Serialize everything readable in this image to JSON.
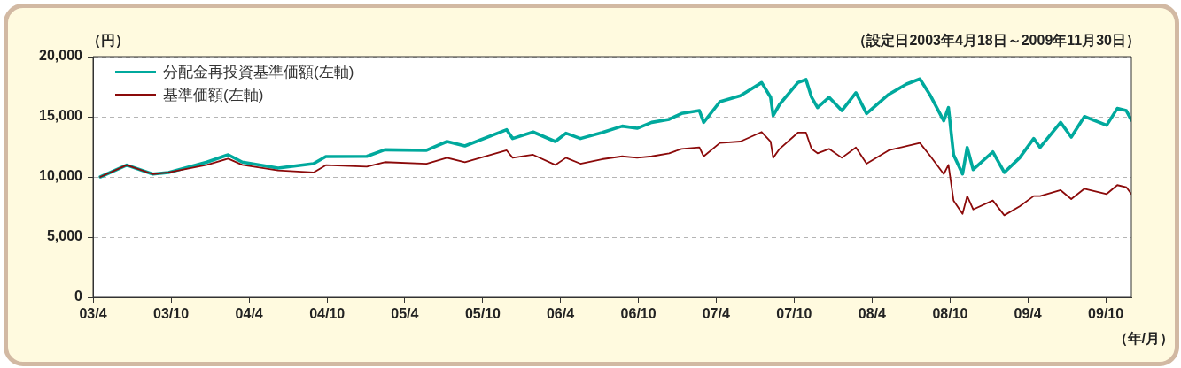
{
  "chart_data": {
    "type": "line",
    "subtitle": "（設定日2003年4月18日～2009年11月30日）",
    "ylabel": "（円）",
    "xlabel": "（年/月）",
    "x": [
      "2003-04-18",
      "2003-06-19",
      "2003-08-19",
      "2003-09-25",
      "2003-12-24",
      "2004-02-12",
      "2004-03-16",
      "2004-06-08",
      "2004-08-30",
      "2004-09-28",
      "2005-01-02",
      "2005-02-13",
      "2005-05-22",
      "2005-07-09",
      "2005-08-20",
      "2005-11-26",
      "2005-12-10",
      "2006-01-27",
      "2006-03-20",
      "2006-04-14",
      "2006-05-18",
      "2006-07-07",
      "2006-08-24",
      "2006-09-28",
      "2006-11-01",
      "2006-12-12",
      "2007-01-10",
      "2007-02-21",
      "2007-03-03",
      "2007-04-10",
      "2007-05-28",
      "2007-07-17",
      "2007-08-07",
      "2007-08-13",
      "2007-08-28",
      "2007-10-10",
      "2007-10-29",
      "2007-11-11",
      "2007-11-25",
      "2007-12-22",
      "2008-01-21",
      "2008-02-23",
      "2008-03-19",
      "2008-05-10",
      "2008-06-21",
      "2008-07-22",
      "2008-08-16",
      "2008-09-16",
      "2008-09-27",
      "2008-10-09",
      "2008-10-30",
      "2008-11-10",
      "2008-11-24",
      "2009-01-09",
      "2009-02-05",
      "2009-03-13",
      "2009-04-15",
      "2009-04-30",
      "2009-06-17",
      "2009-07-12",
      "2009-08-12",
      "2009-10-03",
      "2009-10-28",
      "2009-11-18",
      "2009-11-30"
    ],
    "series": [
      {
        "name": "分配金再投資基準価額(左軸)",
        "color": "#00a99d",
        "values": [
          10000,
          10980,
          10240,
          10370,
          11230,
          11840,
          11230,
          10740,
          11100,
          11690,
          11710,
          12250,
          12210,
          12940,
          12570,
          13920,
          13190,
          13730,
          12940,
          13630,
          13190,
          13680,
          14220,
          14040,
          14530,
          14780,
          15270,
          15510,
          14530,
          16250,
          16740,
          17840,
          16620,
          15100,
          16030,
          17840,
          18090,
          16620,
          15760,
          16620,
          15510,
          16990,
          15270,
          16860,
          17720,
          18140,
          16740,
          14660,
          15760,
          11840,
          10240,
          12450,
          10610,
          12080,
          10370,
          11590,
          13190,
          12450,
          14530,
          13310,
          15020,
          14290,
          15690,
          15510,
          14710
        ]
      },
      {
        "name": "基準価額(左軸)",
        "color": "#8b0a0a",
        "values": [
          10000,
          10980,
          10240,
          10370,
          11000,
          11520,
          11000,
          10540,
          10370,
          10980,
          10860,
          11230,
          11100,
          11590,
          11230,
          12210,
          11590,
          11840,
          11000,
          11590,
          11100,
          11470,
          11710,
          11590,
          11710,
          11960,
          12330,
          12450,
          11710,
          12820,
          12940,
          13730,
          12940,
          11590,
          12330,
          13680,
          13680,
          12330,
          11960,
          12330,
          11590,
          12450,
          11100,
          12210,
          12570,
          12820,
          11710,
          10240,
          11000,
          8040,
          6930,
          8410,
          7300,
          8040,
          6810,
          7550,
          8410,
          8410,
          8900,
          8160,
          9020,
          8580,
          9320,
          9150,
          8580
        ]
      }
    ],
    "xlim": [
      "2003-04-01",
      "2009-11-30"
    ],
    "xticks": [
      {
        "value": "2003-04-01",
        "label": "03/4"
      },
      {
        "value": "2003-10-01",
        "label": "03/10"
      },
      {
        "value": "2004-04-01",
        "label": "04/4"
      },
      {
        "value": "2004-10-01",
        "label": "04/10"
      },
      {
        "value": "2005-04-01",
        "label": "05/4"
      },
      {
        "value": "2005-10-01",
        "label": "05/10"
      },
      {
        "value": "2006-04-01",
        "label": "06/4"
      },
      {
        "value": "2006-10-01",
        "label": "06/10"
      },
      {
        "value": "2007-04-01",
        "label": "07/4"
      },
      {
        "value": "2007-10-01",
        "label": "07/10"
      },
      {
        "value": "2008-04-01",
        "label": "08/4"
      },
      {
        "value": "2008-10-01",
        "label": "08/10"
      },
      {
        "value": "2009-04-01",
        "label": "09/4"
      },
      {
        "value": "2009-10-01",
        "label": "09/10"
      }
    ],
    "ylim": [
      0,
      20000
    ],
    "yticks": [
      {
        "value": 0,
        "label": "0"
      },
      {
        "value": 5000,
        "label": "5,000"
      },
      {
        "value": 10000,
        "label": "10,000"
      },
      {
        "value": 15000,
        "label": "15,000"
      },
      {
        "value": 20000,
        "label": "20,000"
      }
    ],
    "grid": "y",
    "legend": "top left",
    "marker": "none",
    "line_style": "solid"
  }
}
